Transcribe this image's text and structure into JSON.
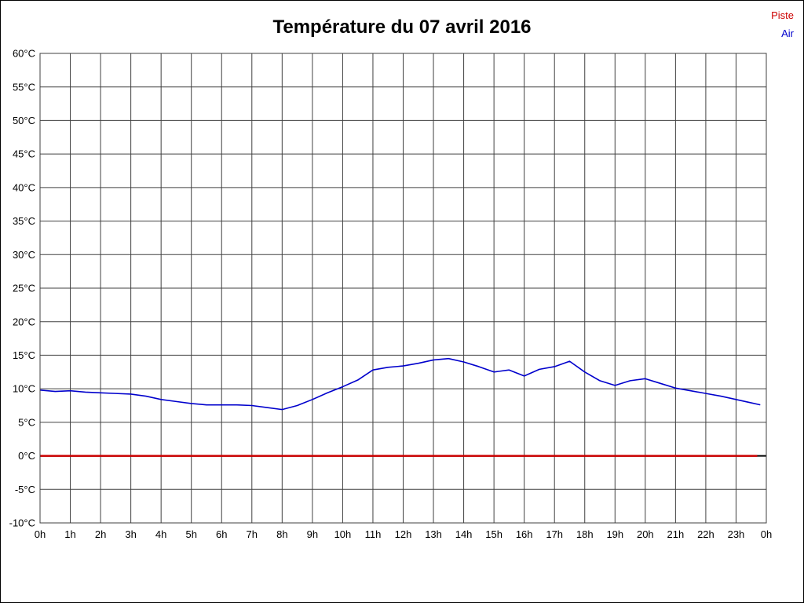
{
  "page": {
    "background": "#ffffff",
    "border_color": "#000000"
  },
  "legend": {
    "items": [
      {
        "label": "Piste",
        "color": "#cc0000"
      },
      {
        "label": "Air",
        "color": "#0000cc"
      }
    ]
  },
  "chart_data": {
    "type": "line",
    "title": "Température du 07 avril 2016",
    "xlabel": "",
    "ylabel": "",
    "xlim": [
      0,
      24
    ],
    "ylim": [
      -10,
      60
    ],
    "grid": true,
    "grid_color": "#404040",
    "legend_position": "top-right",
    "x_ticks": [
      0,
      1,
      2,
      3,
      4,
      5,
      6,
      7,
      8,
      9,
      10,
      11,
      12,
      13,
      14,
      15,
      16,
      17,
      18,
      19,
      20,
      21,
      22,
      23,
      24
    ],
    "x_tick_labels": [
      "0h",
      "1h",
      "2h",
      "3h",
      "4h",
      "5h",
      "6h",
      "7h",
      "8h",
      "9h",
      "10h",
      "11h",
      "12h",
      "13h",
      "14h",
      "15h",
      "16h",
      "17h",
      "18h",
      "19h",
      "20h",
      "21h",
      "22h",
      "23h",
      "0h"
    ],
    "y_ticks": [
      60,
      55,
      50,
      45,
      40,
      35,
      30,
      25,
      20,
      15,
      10,
      5,
      0,
      -5,
      -10
    ],
    "y_tick_labels": [
      "60°C",
      "55°C",
      "50°C",
      "45°C",
      "40°C",
      "35°C",
      "30°C",
      "25°C",
      "20°C",
      "15°C",
      "10°C",
      "5°C",
      "0°C",
      "-5°C",
      "-10°C"
    ],
    "zero_line": {
      "value": 0,
      "color": "#000000",
      "width": 2
    },
    "series": [
      {
        "name": "Piste",
        "color": "#cc0000",
        "width": 2.5,
        "x": [
          0,
          23.7
        ],
        "values": [
          0,
          0
        ]
      },
      {
        "name": "Air",
        "color": "#0000cc",
        "width": 1.6,
        "x": [
          0,
          0.5,
          1,
          1.5,
          2,
          2.5,
          3,
          3.5,
          4,
          4.5,
          5,
          5.5,
          6,
          6.5,
          7,
          7.5,
          8,
          8.5,
          9,
          9.5,
          10,
          10.5,
          11,
          11.5,
          12,
          12.5,
          13,
          13.5,
          14,
          14.5,
          15,
          15.5,
          16,
          16.5,
          17,
          17.5,
          18,
          18.5,
          19,
          19.5,
          20,
          20.5,
          21,
          21.5,
          22,
          22.5,
          23,
          23.5,
          23.8
        ],
        "values": [
          9.8,
          9.6,
          9.7,
          9.5,
          9.4,
          9.3,
          9.2,
          8.9,
          8.4,
          8.1,
          7.8,
          7.6,
          7.6,
          7.6,
          7.5,
          7.2,
          6.9,
          7.5,
          8.4,
          9.4,
          10.3,
          11.3,
          12.8,
          13.2,
          13.4,
          13.8,
          14.3,
          14.5,
          14.0,
          13.3,
          12.5,
          12.8,
          11.9,
          12.9,
          13.3,
          14.1,
          12.5,
          11.2,
          10.5,
          11.2,
          11.5,
          10.8,
          10.1,
          9.7,
          9.3,
          8.9,
          8.4,
          7.9,
          7.6
        ]
      }
    ]
  }
}
